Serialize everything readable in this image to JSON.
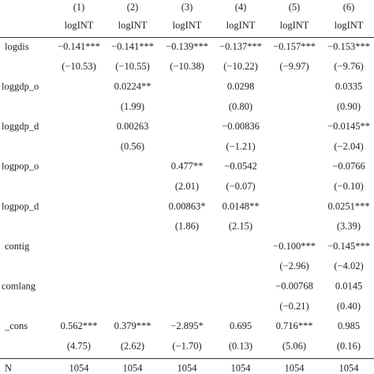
{
  "table": {
    "header": [
      [
        "(1)",
        "(2)",
        "(3)",
        "(4)",
        "(5)",
        "(6)"
      ],
      [
        "logINT",
        "logINT",
        "logINT",
        "logINT",
        "logINT",
        "logINT"
      ]
    ],
    "rows": [
      [
        "logdis",
        "−0.141***",
        "−0.141***",
        "−0.139***",
        "−0.137***",
        "−0.157***",
        "−0.153***"
      ],
      [
        null,
        "(−10.53)",
        "(−10.55)",
        "(−10.38)",
        "(−10.22)",
        "(−9.97)",
        "(−9.76)"
      ],
      [
        "loggdp_o",
        null,
        "0.0224**",
        null,
        "0.0298",
        null,
        "0.0335"
      ],
      [
        null,
        null,
        "(1.99)",
        null,
        "(0.80)",
        null,
        "(0.90)"
      ],
      [
        "loggdp_d",
        null,
        "0.00263",
        null,
        "−0.00836",
        null,
        "−0.0145**"
      ],
      [
        null,
        null,
        "(0.56)",
        null,
        "(−1.21)",
        null,
        "(−2.04)"
      ],
      [
        "logpop_o",
        null,
        null,
        "0.477**",
        "−0.0542",
        null,
        "−0.0766"
      ],
      [
        null,
        null,
        null,
        "(2.01)",
        "(−0.07)",
        null,
        "(−0.10)"
      ],
      [
        "logpop_d",
        null,
        null,
        "0.00863*",
        "0.0148**",
        null,
        "0.0251***"
      ],
      [
        null,
        null,
        null,
        "(1.86)",
        "(2.15)",
        null,
        "(3.39)"
      ],
      [
        "contig",
        null,
        null,
        null,
        null,
        "−0.100***",
        "−0.145***"
      ],
      [
        null,
        null,
        null,
        null,
        null,
        "(−2.96)",
        "(−4.02)"
      ],
      [
        "comlang",
        null,
        null,
        null,
        null,
        "−0.00768",
        "0.0145"
      ],
      [
        null,
        null,
        null,
        null,
        null,
        "(−0.21)",
        "(0.40)"
      ],
      [
        "_cons",
        "0.562***",
        "0.379***",
        "−2.895*",
        "0.695",
        "0.716***",
        "0.985"
      ],
      [
        null,
        "(4.75)",
        "(2.62)",
        "(−1.70)",
        "(0.13)",
        "(5.06)",
        "(0.16)"
      ],
      [
        "N",
        1054,
        1054,
        1054,
        1054,
        1054,
        1054
      ]
    ]
  }
}
